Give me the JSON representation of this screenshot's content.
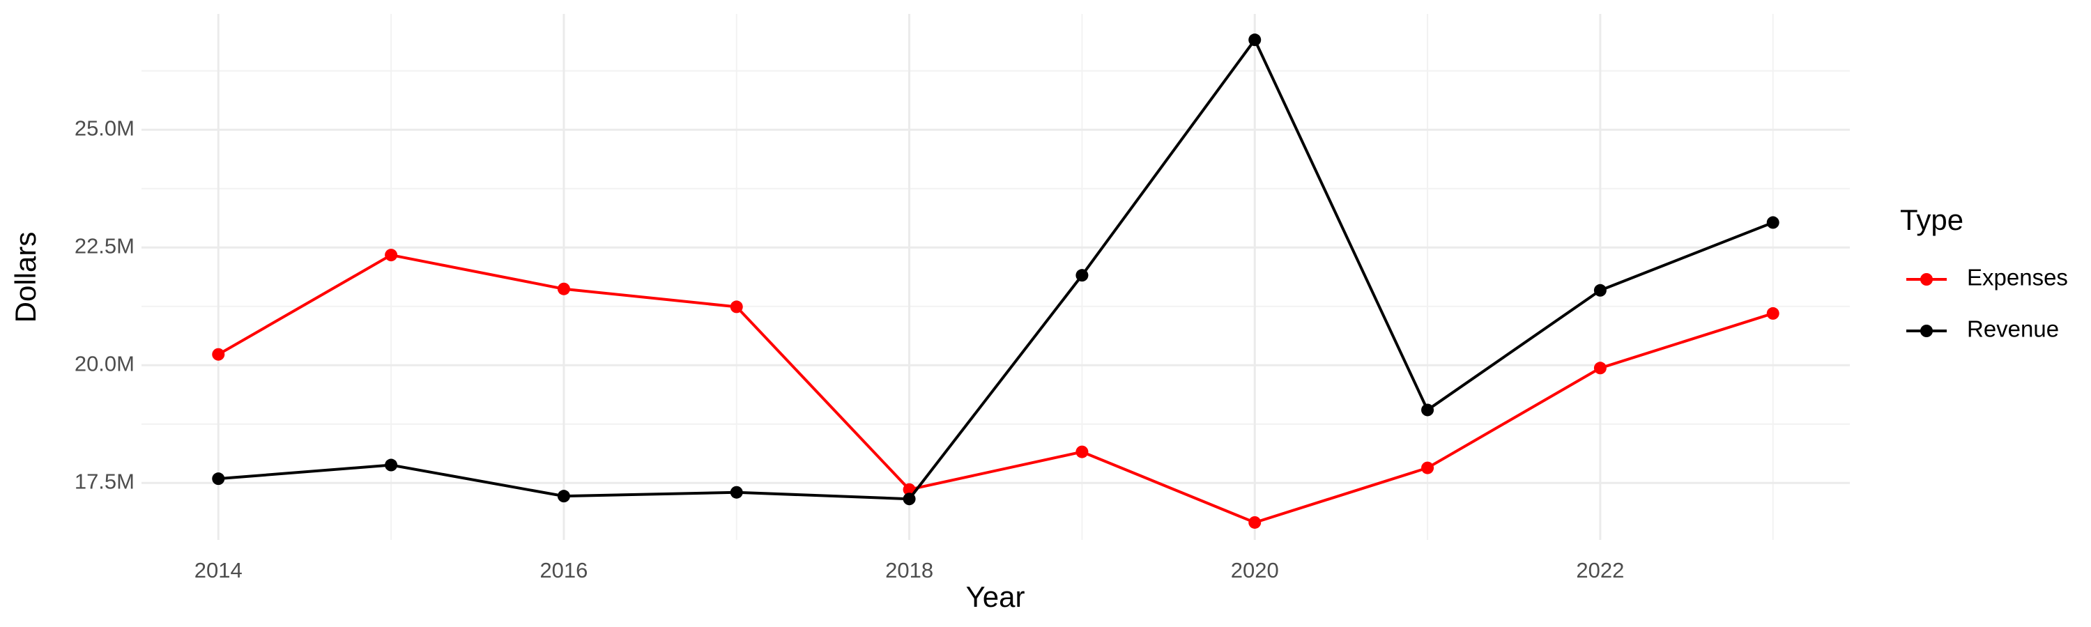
{
  "chart_data": {
    "type": "line",
    "x_label": "Year",
    "y_label": "Dollars",
    "legend_title": "Type",
    "legend_position": "right",
    "x": [
      2014,
      2015,
      2016,
      2017,
      2018,
      2019,
      2020,
      2021,
      2022,
      2023
    ],
    "series": [
      {
        "name": "Expenses",
        "color": "#ff0000",
        "values": [
          20230000,
          22340000,
          21620000,
          21240000,
          17360000,
          18160000,
          16660000,
          17820000,
          19940000,
          21100000
        ]
      },
      {
        "name": "Revenue",
        "color": "#000000",
        "values": [
          17590000,
          17880000,
          17220000,
          17300000,
          17160000,
          21910000,
          26910000,
          19050000,
          21590000,
          23030000
        ]
      }
    ],
    "xlim": [
      2013.555,
      2023.445
    ],
    "xticks": [
      2014,
      2016,
      2018,
      2020,
      2022
    ],
    "xminorticks": [
      2015,
      2017,
      2019,
      2021,
      2023
    ],
    "ylim": [
      16290000,
      27460000
    ],
    "yticks": [
      {
        "value": 17500000,
        "label": "17.5M"
      },
      {
        "value": 20000000,
        "label": "20.0M"
      },
      {
        "value": 22500000,
        "label": "22.5M"
      },
      {
        "value": 25000000,
        "label": "25.0M"
      }
    ],
    "yminorticks": [
      16250000,
      18750000,
      21250000,
      23750000,
      26250000
    ],
    "grid": true,
    "markers": true
  }
}
